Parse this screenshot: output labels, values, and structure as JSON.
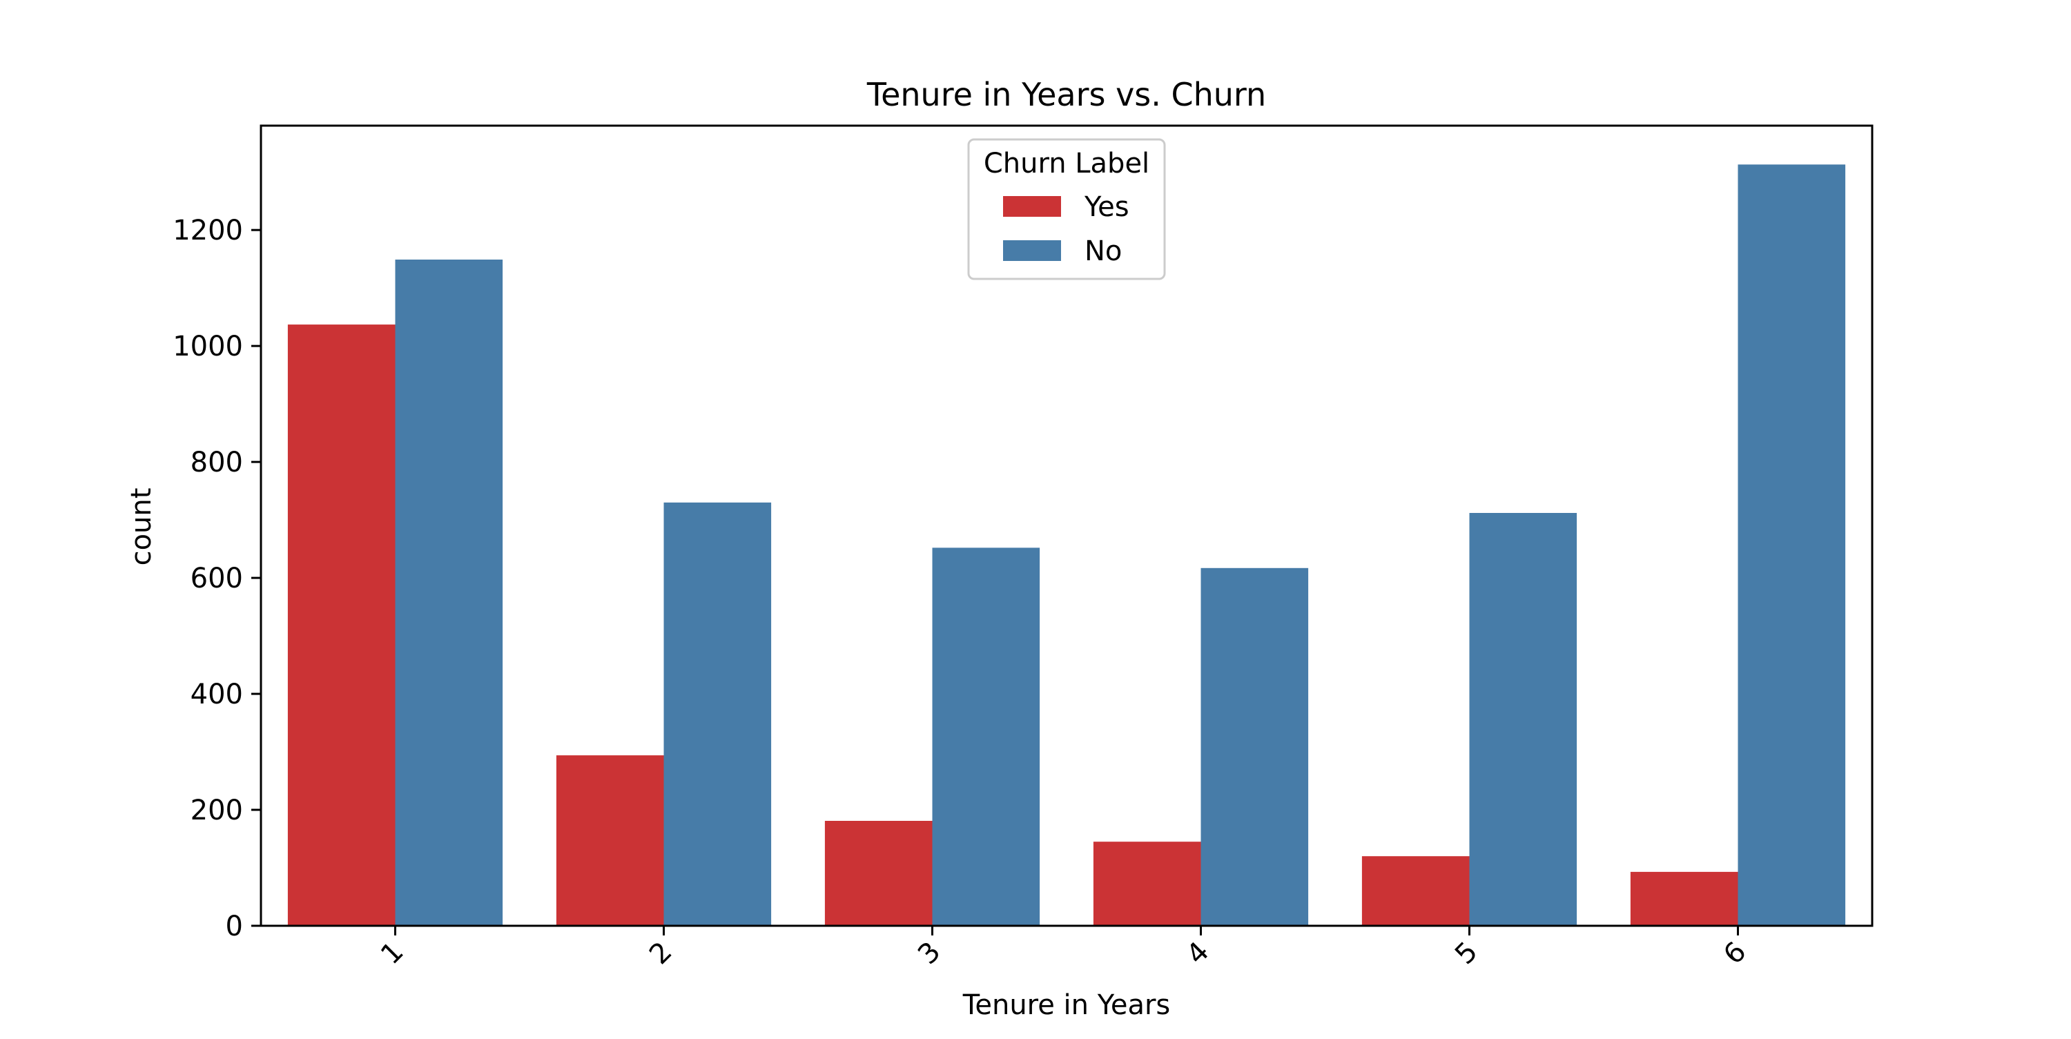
{
  "chart_data": {
    "type": "bar",
    "title": "Tenure in Years vs. Churn",
    "xlabel": "Tenure in Years",
    "ylabel": "count",
    "categories": [
      "1",
      "2",
      "3",
      "4",
      "5",
      "6"
    ],
    "ylim": [
      0,
      1380
    ],
    "yticks": [
      0,
      200,
      400,
      600,
      800,
      1000,
      1200
    ],
    "grid": false,
    "legend": {
      "title": "Churn Label",
      "placement": "upper center"
    },
    "series": [
      {
        "name": "Yes",
        "color": "#cb3335",
        "values": [
          1037,
          294,
          181,
          145,
          120,
          93
        ]
      },
      {
        "name": "No",
        "color": "#477ca8",
        "values": [
          1149,
          730,
          652,
          617,
          712,
          1313
        ]
      }
    ]
  }
}
